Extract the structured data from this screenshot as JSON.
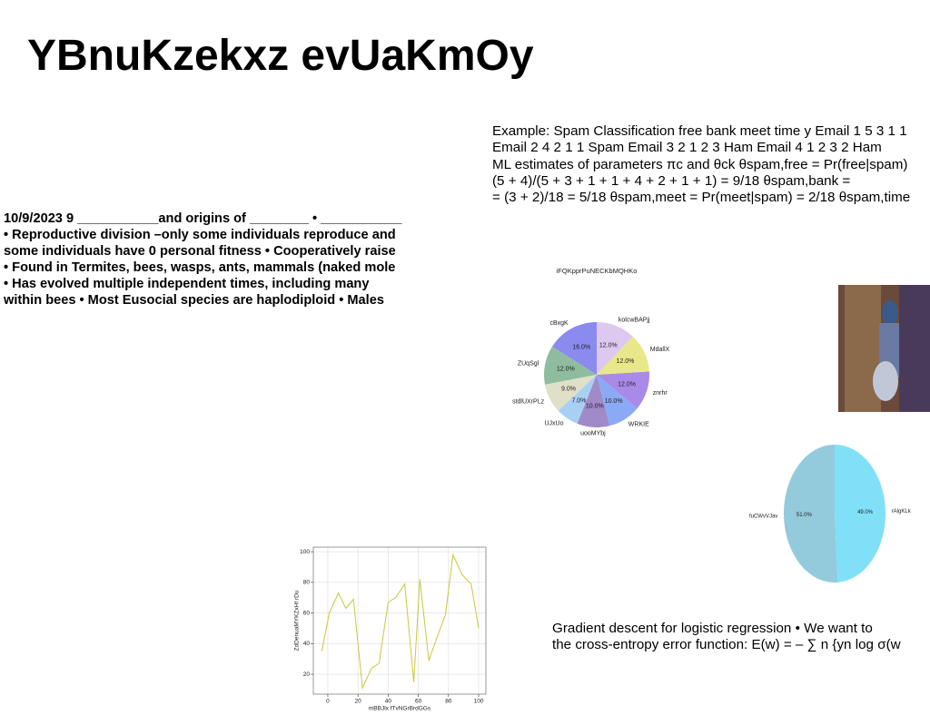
{
  "title": "YBnuKzekxz evUaKmOy",
  "left_text": [
    "10/9/2023 9 ___________and origins of ________ • ___________",
    "• Reproductive division –only some individuals reproduce and",
    "some individuals have 0 personal fitness • Cooperatively raise",
    "• Found in Termites, bees, wasps, ants, mammals (naked mole",
    "• Has evolved multiple independent times, including many",
    "within bees • Most Eusocial species are haplodiploid • Males"
  ],
  "right_text": [
    "Example: Spam Classification free bank meet time y Email 1 5 3 1 1",
    "Email 2 4 2 1 1 Spam Email 3 2 1 2 3 Ham Email 4 1 2 3 2 Ham",
    "ML estimates of parameters πc and θck θspam,free = Pr(free|spam)",
    "(5 + 4)/(5 + 3 + 1 + 1 + 4 + 2 + 1 + 1) = 9/18 θspam,bank =",
    "= (3 + 2)/18 = 5/18 θspam,meet = Pr(meet|spam) = 2/18 θspam,time"
  ],
  "bottom_text": [
    "Gradient descent for logistic regression • We want to",
    "the cross-entropy error function: E(w) = – ∑ n {yn log σ(w"
  ],
  "chart_data": [
    {
      "type": "pie",
      "title": "iFQKpprPuNECKbMQHKo",
      "categories": [
        "cBxgK",
        "ZUqSgl",
        "stdlUXrPLz",
        "UJxUo",
        "uooMYbj",
        "WRKIE",
        "znrhr",
        "MdallX",
        "kolcwBAPjj"
      ],
      "values": [
        16,
        12,
        9,
        7,
        10,
        10,
        12,
        12,
        12
      ],
      "value_labels": [
        "16.0%",
        "12.0%",
        "9.0%",
        "7.0%",
        "10.0%",
        "10.0%",
        "12.0%",
        "12.0%",
        "12.0%"
      ],
      "colors": [
        "#8a8aef",
        "#8fbc9f",
        "#e0e0c8",
        "#a8d0f5",
        "#a08ac8",
        "#8aaaf5",
        "#a98ae8",
        "#e8e88a",
        "#ddc8f0"
      ]
    },
    {
      "type": "pie",
      "categories": [
        "fuCWvVJav",
        "rAlgKLk"
      ],
      "values": [
        51,
        49
      ],
      "value_labels": [
        "51.0%",
        "49.0%"
      ],
      "colors": [
        "#93cbdc",
        "#80e0f8"
      ]
    },
    {
      "type": "line",
      "xlabel": "mBBJlx fTvNGrBrdGGs",
      "ylabel": "ZdDenuaMYKZxHf rDu",
      "x": [
        -4,
        1,
        7,
        12,
        17,
        23,
        29,
        34,
        40,
        45,
        51,
        57,
        61,
        67,
        72,
        78,
        83,
        89,
        95,
        100
      ],
      "values": [
        35,
        60,
        73,
        63,
        69,
        11,
        24,
        27,
        67,
        70,
        79,
        15,
        82,
        29,
        43,
        59,
        98,
        85,
        79,
        50
      ],
      "color": "#c8c83c",
      "xlim": [
        -9.6,
        104.8
      ],
      "ylim": [
        7,
        103
      ],
      "xticks": [
        0,
        20,
        40,
        60,
        80,
        100
      ],
      "yticks": [
        20,
        40,
        60,
        80,
        100
      ],
      "grid": true
    }
  ]
}
